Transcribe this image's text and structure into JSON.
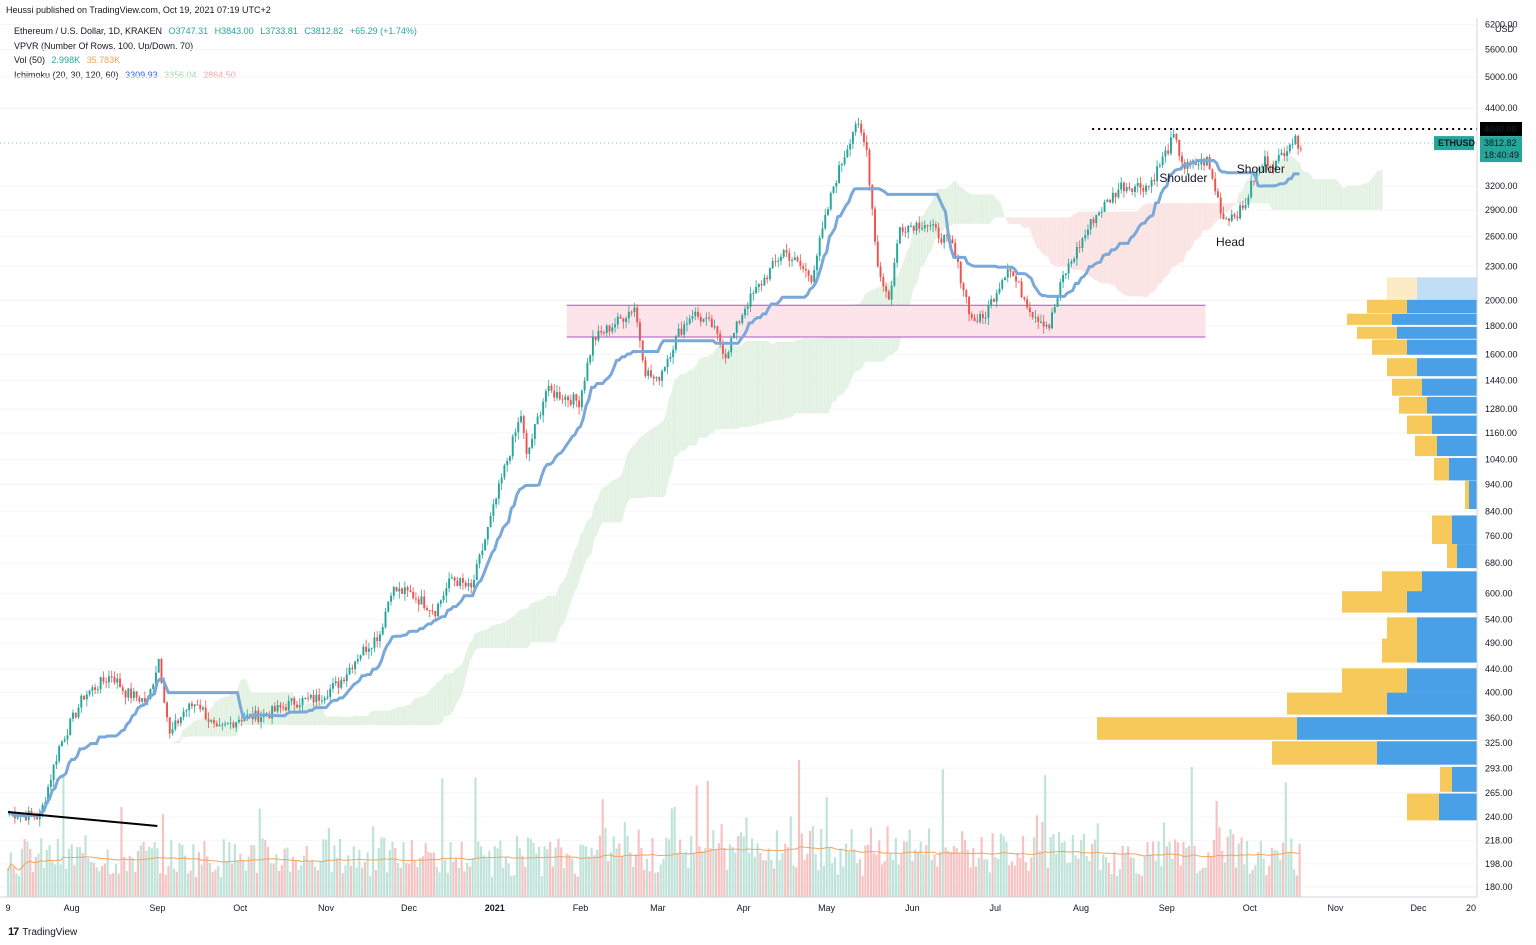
{
  "header": {
    "published": "Heussi published on TradingView.com, Oct 19, 2021 07:19 UTC+2"
  },
  "legend": {
    "symbol": "Ethereum / U.S. Dollar, 1D, KRAKEN",
    "open": "O3747.31",
    "high": "H3843.00",
    "low": "L3733.81",
    "close": "C3812.82",
    "change": "+65.29 (+1.74%)",
    "vpvr": "VPVR (Number Of Rows, 100, Up/Down, 70)",
    "vol_label": "Vol (50)",
    "vol_a": "2.998K",
    "vol_b": "35.783K",
    "ichimoku_label": "Ichimoku (20, 30, 120, 60)",
    "ichi_a": "3309.93",
    "ichi_b": "3356.04",
    "ichi_c": "2864.50"
  },
  "footer": {
    "brand": "TradingView",
    "logo": "17"
  },
  "colors": {
    "up": "#26a69a",
    "down": "#ef5350",
    "kijun": "#7aa8d9",
    "cloud_green": "#e4f2e4",
    "cloud_red": "#fbe4e4",
    "vp_up": "#4aa0e6",
    "vp_down": "#f7c85a",
    "vol_ma": "#f5a45a",
    "box_fill": "#fde4ea",
    "box_line": "#b14fc5",
    "tag": "#26a69a"
  },
  "chart_data": {
    "type": "candlestick",
    "symbol": "ETHUSD",
    "scale": "log",
    "price_axis_labels": [
      "6200.00",
      "5600.00",
      "5000.00",
      "4400.00",
      "3200.00",
      "2900.00",
      "2600.00",
      "2300.00",
      "2000.00",
      "1800.00",
      "1600.00",
      "1440.00",
      "1280.00",
      "1160.00",
      "1040.00",
      "940.00",
      "840.00",
      "760.00",
      "680.00",
      "600.00",
      "540.00",
      "490.00",
      "440.00",
      "400.00",
      "360.00",
      "325.00",
      "293.00",
      "265.00",
      "240.00",
      "218.00",
      "198.00",
      "180.00"
    ],
    "price_axis_unit": "USD",
    "x_axis_labels": [
      "9",
      "Aug",
      "Sep",
      "Oct",
      "Nov",
      "Dec",
      "2021",
      "Feb",
      "Mar",
      "Apr",
      "May",
      "Jun",
      "Jul",
      "Aug",
      "Sep",
      "Oct",
      "Nov",
      "Dec",
      "20"
    ],
    "last_price_tag": {
      "label": "ETHUSD",
      "value": "3812.82",
      "countdown": "18:40:49"
    },
    "level_tag": "4040.00",
    "resistance_level": 4040,
    "annotations": [
      {
        "text": "Shoulder",
        "price": 3250,
        "date": "2021-09-07"
      },
      {
        "text": "Head",
        "price": 2500,
        "date": "2021-09-24"
      },
      {
        "text": "Shoulder",
        "price": 3370,
        "date": "2021-10-05"
      }
    ],
    "price_path": [
      [
        "2020-07-09",
        244
      ],
      [
        "2020-07-20",
        240
      ],
      [
        "2020-07-27",
        320
      ],
      [
        "2020-08-05",
        395
      ],
      [
        "2020-08-15",
        430
      ],
      [
        "2020-08-20",
        400
      ],
      [
        "2020-08-28",
        385
      ],
      [
        "2020-09-01",
        460
      ],
      [
        "2020-09-05",
        335
      ],
      [
        "2020-09-10",
        370
      ],
      [
        "2020-09-15",
        385
      ],
      [
        "2020-09-22",
        340
      ],
      [
        "2020-09-30",
        360
      ],
      [
        "2020-10-10",
        365
      ],
      [
        "2020-10-20",
        385
      ],
      [
        "2020-10-28",
        390
      ],
      [
        "2020-11-05",
        415
      ],
      [
        "2020-11-12",
        465
      ],
      [
        "2020-11-20",
        510
      ],
      [
        "2020-11-24",
        610
      ],
      [
        "2020-12-01",
        600
      ],
      [
        "2020-12-10",
        560
      ],
      [
        "2020-12-16",
        640
      ],
      [
        "2020-12-23",
        610
      ],
      [
        "2021-01-04",
        1000
      ],
      [
        "2021-01-10",
        1250
      ],
      [
        "2021-01-12",
        1050
      ],
      [
        "2021-01-19",
        1380
      ],
      [
        "2021-01-25",
        1350
      ],
      [
        "2021-01-31",
        1320
      ],
      [
        "2021-02-05",
        1700
      ],
      [
        "2021-02-15",
        1850
      ],
      [
        "2021-02-20",
        1950
      ],
      [
        "2021-02-24",
        1500
      ],
      [
        "2021-02-28",
        1430
      ],
      [
        "2021-03-08",
        1750
      ],
      [
        "2021-03-13",
        1900
      ],
      [
        "2021-03-20",
        1800
      ],
      [
        "2021-03-25",
        1600
      ],
      [
        "2021-04-01",
        1950
      ],
      [
        "2021-04-15",
        2450
      ],
      [
        "2021-04-25",
        2200
      ],
      [
        "2021-05-03",
        3200
      ],
      [
        "2021-05-11",
        4150
      ],
      [
        "2021-05-15",
        3700
      ],
      [
        "2021-05-19",
        2300
      ],
      [
        "2021-05-23",
        2000
      ],
      [
        "2021-05-27",
        2700
      ],
      [
        "2021-06-05",
        2750
      ],
      [
        "2021-06-15",
        2500
      ],
      [
        "2021-06-22",
        1850
      ],
      [
        "2021-06-26",
        1850
      ],
      [
        "2021-07-05",
        2300
      ],
      [
        "2021-07-14",
        1900
      ],
      [
        "2021-07-20",
        1800
      ],
      [
        "2021-07-25",
        2200
      ],
      [
        "2021-08-05",
        2800
      ],
      [
        "2021-08-15",
        3200
      ],
      [
        "2021-08-25",
        3200
      ],
      [
        "2021-09-03",
        3900
      ],
      [
        "2021-09-07",
        3450
      ],
      [
        "2021-09-15",
        3550
      ],
      [
        "2021-09-21",
        2800
      ],
      [
        "2021-09-28",
        2900
      ],
      [
        "2021-10-02",
        3300
      ],
      [
        "2021-10-06",
        3550
      ],
      [
        "2021-10-10",
        3500
      ],
      [
        "2021-10-15",
        3850
      ],
      [
        "2021-10-19",
        3812.82
      ]
    ],
    "volume_profile": [
      {
        "price": 2100,
        "up": 60,
        "down": 30
      },
      {
        "price": 1950,
        "up": 70,
        "down": 40
      },
      {
        "price": 1850,
        "up": 85,
        "down": 45
      },
      {
        "price": 1750,
        "up": 80,
        "down": 40
      },
      {
        "price": 1650,
        "up": 70,
        "down": 35
      },
      {
        "price": 1520,
        "up": 60,
        "down": 30
      },
      {
        "price": 1400,
        "up": 55,
        "down": 30
      },
      {
        "price": 1300,
        "up": 50,
        "down": 28
      },
      {
        "price": 1200,
        "up": 45,
        "down": 25
      },
      {
        "price": 1100,
        "up": 40,
        "down": 22
      },
      {
        "price": 1000,
        "up": 28,
        "down": 15
      },
      {
        "price": 900,
        "up": 8,
        "down": 4
      },
      {
        "price": 780,
        "up": 25,
        "down": 20
      },
      {
        "price": 700,
        "up": 20,
        "down": 10
      },
      {
        "price": 630,
        "up": 55,
        "down": 40
      },
      {
        "price": 580,
        "up": 70,
        "down": 65
      },
      {
        "price": 520,
        "up": 60,
        "down": 30
      },
      {
        "price": 475,
        "up": 60,
        "down": 35
      },
      {
        "price": 420,
        "up": 70,
        "down": 65
      },
      {
        "price": 382,
        "up": 90,
        "down": 100
      },
      {
        "price": 345,
        "up": 180,
        "down": 200
      },
      {
        "price": 312,
        "up": 100,
        "down": 105
      },
      {
        "price": 280,
        "up": 25,
        "down": 12
      },
      {
        "price": 250,
        "up": 38,
        "down": 32
      }
    ]
  }
}
